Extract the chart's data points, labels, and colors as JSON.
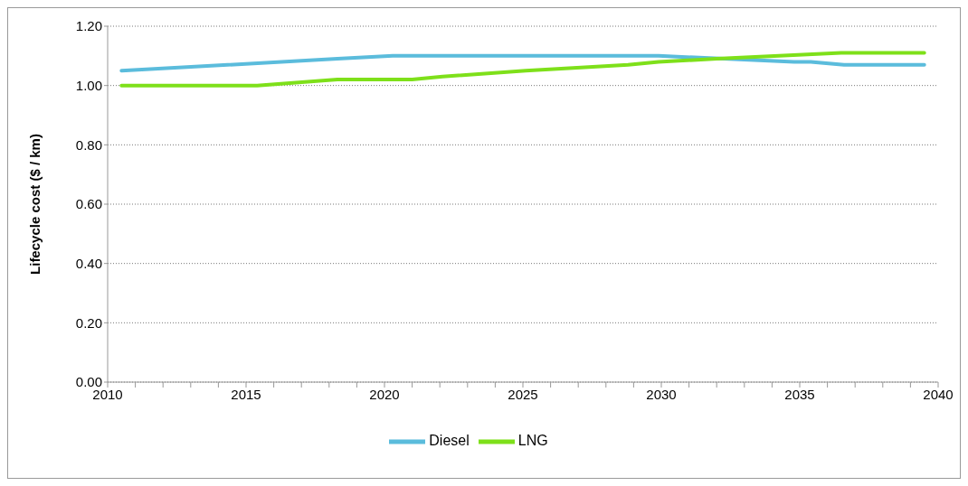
{
  "chart_data": {
    "type": "line",
    "ylabel": "Lifecycle cost ($ / km)",
    "xlim": [
      2010,
      2040
    ],
    "xticks": [
      2010,
      {
        "value": 2011,
        "label": null
      },
      {
        "value": 2012,
        "label": null
      },
      {
        "value": 2013,
        "label": null
      },
      {
        "value": 2014,
        "label": null
      },
      2015,
      {
        "value": 2016,
        "label": null
      },
      {
        "value": 2017,
        "label": null
      },
      {
        "value": 2018,
        "label": null
      },
      {
        "value": 2019,
        "label": null
      },
      2020,
      {
        "value": 2021,
        "label": null
      },
      {
        "value": 2022,
        "label": null
      },
      {
        "value": 2023,
        "label": null
      },
      {
        "value": 2024,
        "label": null
      },
      2025,
      {
        "value": 2026,
        "label": null
      },
      {
        "value": 2027,
        "label": null
      },
      {
        "value": 2028,
        "label": null
      },
      {
        "value": 2029,
        "label": null
      },
      2030,
      {
        "value": 2031,
        "label": null
      },
      {
        "value": 2032,
        "label": null
      },
      {
        "value": 2033,
        "label": null
      },
      {
        "value": 2034,
        "label": null
      },
      2035,
      {
        "value": 2036,
        "label": null
      },
      {
        "value": 2037,
        "label": null
      },
      {
        "value": 2038,
        "label": null
      },
      {
        "value": 2039,
        "label": null
      },
      2040
    ],
    "ylim": [
      0,
      1.2
    ],
    "yticks": [
      {
        "value": 0,
        "label": "0.00"
      },
      {
        "value": 0.2,
        "label": "0.20"
      },
      {
        "value": 0.4,
        "label": "0.40"
      },
      {
        "value": 0.6,
        "label": "0.60"
      },
      {
        "value": 0.8,
        "label": "0.80"
      },
      {
        "value": 1,
        "label": "1.00"
      },
      {
        "value": 1.2,
        "label": "1.20"
      }
    ],
    "grid": "y",
    "legend": "bottom",
    "marker": "none",
    "line_style": "solid",
    "series": [
      {
        "name": "Diesel",
        "color": "#5bbcdc",
        "x": [
          2010.5,
          2018.3,
          2020.3,
          2022.2,
          2023.1,
          2026.9,
          2027.7,
          2029.9,
          2034.8,
          2035.4,
          2036.6,
          2037.5,
          2038.6,
          2039.5
        ],
        "values": [
          1.05,
          1.09,
          1.1,
          1.1,
          1.1,
          1.1,
          1.1,
          1.1,
          1.08,
          1.08,
          1.07,
          1.07,
          1.07,
          1.07
        ]
      },
      {
        "name": "LNG",
        "color": "#7ee01a",
        "x": [
          2010.5,
          2015.4,
          2018.3,
          2021,
          2022.1,
          2025.1,
          2028.8,
          2029.9,
          2032,
          2036.5,
          2039.5
        ],
        "values": [
          1.0,
          1.0,
          1.02,
          1.02,
          1.03,
          1.05,
          1.07,
          1.08,
          1.09,
          1.11,
          1.11
        ]
      }
    ]
  }
}
